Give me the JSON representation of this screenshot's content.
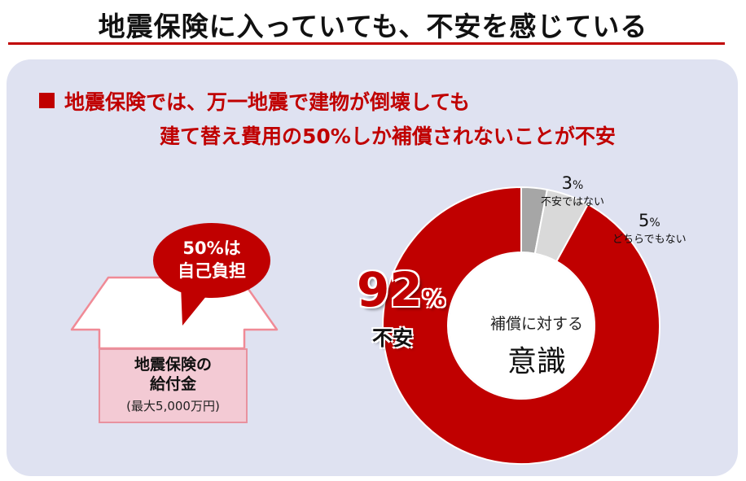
{
  "title": "地震保険に入っていても、不安を感じている",
  "headline": {
    "line1": "地震保険では、万一地震で建物が倒壊しても",
    "line2": "建て替え費用の50%しか補償されないことが不安"
  },
  "bubble": {
    "line1": "50%は",
    "line2": "自己負担"
  },
  "benefit": {
    "line1": "地震保険の",
    "line2": "給付金",
    "note": "(最大5,000万円)"
  },
  "colors": {
    "accent": "#c00000",
    "panel": "#dfe2f1",
    "gray_dark": "#a6a6a6",
    "gray_light": "#d9d9d9"
  },
  "chart_data": {
    "type": "pie",
    "center_label": {
      "small": "補償に対する",
      "big": "意識"
    },
    "slices": [
      {
        "label": "不安ではない",
        "value": 3,
        "display": "3",
        "unit": "%",
        "color": "#a6a6a6"
      },
      {
        "label": "どちらでもない",
        "value": 5,
        "display": "5",
        "unit": "%",
        "color": "#d9d9d9"
      },
      {
        "label": "不安",
        "value": 92,
        "display": "92",
        "unit": "%",
        "color": "#c00000"
      }
    ]
  }
}
